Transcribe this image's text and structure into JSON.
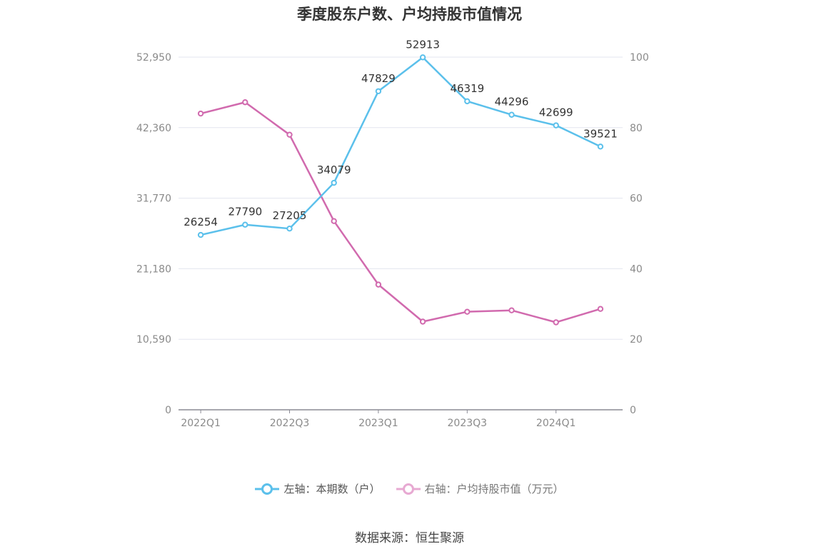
{
  "chart_data": {
    "type": "line",
    "title": "季度股东户数、户均持股市值情况",
    "categories": [
      "2022Q1",
      "2022Q2",
      "2022Q3",
      "2022Q4",
      "2023Q1",
      "2023Q2",
      "2023Q3",
      "2023Q4",
      "2024Q1",
      "2024Q2"
    ],
    "x_tick_labels": [
      "2022Q1",
      "2022Q3",
      "2023Q1",
      "2023Q3",
      "2024Q1"
    ],
    "y_left": {
      "ticks": [
        "0",
        "10,590",
        "21,180",
        "31,770",
        "42,360",
        "52,950"
      ],
      "range": [
        0,
        52950
      ]
    },
    "y_right": {
      "ticks": [
        "0",
        "20",
        "40",
        "60",
        "80",
        "100"
      ],
      "range": [
        0,
        100
      ]
    },
    "series": [
      {
        "name": "左轴：本期数（户）",
        "axis": "left",
        "color": "#5bc0eb",
        "values": [
          26254,
          27790,
          27205,
          34079,
          47829,
          52913,
          46319,
          44296,
          42699,
          39521
        ],
        "labels": [
          "26254",
          "27790",
          "27205",
          "34079",
          "47829",
          "52913",
          "46319",
          "44296",
          "42699",
          "39521"
        ]
      },
      {
        "name": "右轴：户均持股市值（万元）",
        "axis": "right",
        "color": "#d16aae",
        "values": [
          84.0,
          87.2,
          78.0,
          53.5,
          35.5,
          25.0,
          27.8,
          28.2,
          24.8,
          28.6
        ]
      }
    ],
    "grid": true,
    "legend_position": "bottom"
  },
  "legend": {
    "left_label": "左轴：本期数（户）",
    "right_label": "右轴：户均持股市值（万元）"
  },
  "source": "数据来源：恒生聚源"
}
